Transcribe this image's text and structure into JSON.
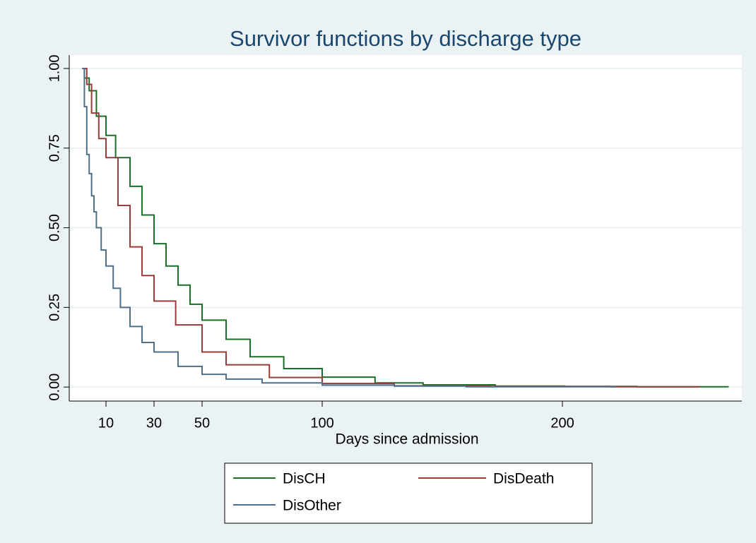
{
  "chart_data": {
    "type": "step",
    "title": "Survivor functions by discharge type",
    "x_label": "Days since admission",
    "xlim": [
      -5.3,
      274.7
    ],
    "xticks": [
      10,
      30,
      50,
      100,
      200
    ],
    "ylim": [
      -0.044,
      1.042
    ],
    "yticks": [
      {
        "value": 0,
        "label": "0.00"
      },
      {
        "value": 0.25,
        "label": "0.25"
      },
      {
        "value": 0.5,
        "label": "0.50"
      },
      {
        "value": 0.75,
        "label": "0.75"
      },
      {
        "value": 1,
        "label": "1.00"
      }
    ],
    "grid": true,
    "series": [
      {
        "name": "DisCH",
        "color": "#1a6e26",
        "x": [
          0,
          1,
          3,
          6,
          10,
          14,
          20,
          25,
          30,
          35,
          40,
          45,
          50,
          60,
          70,
          84,
          100,
          122,
          142,
          172,
          201,
          231,
          269
        ],
        "values": [
          1.0,
          0.97,
          0.93,
          0.85,
          0.79,
          0.72,
          0.63,
          0.54,
          0.45,
          0.38,
          0.32,
          0.26,
          0.21,
          0.15,
          0.095,
          0.058,
          0.031,
          0.013,
          0.007,
          0.003,
          0.002,
          0.001,
          0.0
        ]
      },
      {
        "name": "DisDeath",
        "color": "#9a3a3a",
        "x": [
          0,
          2,
          4,
          7,
          10,
          15,
          20,
          25,
          30,
          39,
          50,
          60,
          78,
          100,
          130,
          170,
          220,
          257
        ],
        "values": [
          1.0,
          0.95,
          0.86,
          0.78,
          0.72,
          0.57,
          0.44,
          0.35,
          0.27,
          0.195,
          0.11,
          0.07,
          0.03,
          0.011,
          0.004,
          0.002,
          0.001,
          0.0
        ]
      },
      {
        "name": "DisOther",
        "color": "#4e6e8a",
        "x": [
          0,
          1,
          2,
          3,
          4,
          5,
          6,
          8,
          10,
          13,
          16,
          20,
          25,
          30,
          40,
          50,
          60,
          75,
          100,
          130,
          160,
          222
        ],
        "values": [
          1.0,
          0.88,
          0.73,
          0.67,
          0.6,
          0.55,
          0.5,
          0.43,
          0.38,
          0.31,
          0.25,
          0.19,
          0.14,
          0.11,
          0.065,
          0.04,
          0.025,
          0.013,
          0.006,
          0.003,
          0.001,
          0.0
        ]
      }
    ]
  }
}
